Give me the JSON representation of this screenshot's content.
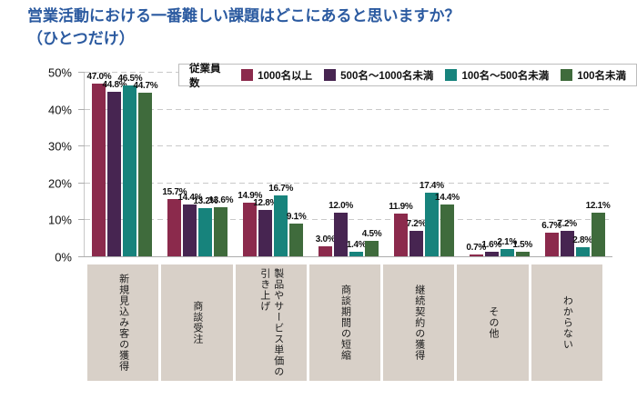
{
  "page": {
    "title_line1": "営業活動における一番難しい課題はどこにあると思いますか？",
    "title_line2": "（ひとつだけ）",
    "title_color": "#2B5AA0"
  },
  "legend": {
    "label": "従業員数"
  },
  "chart_data": {
    "type": "bar",
    "title": "営業活動における一番難しい課題はどこにあると思いますか？（ひとつだけ）",
    "categories": [
      "新規見込み客の獲得",
      "商談受注",
      "製品やサービス単価の\n引き上げ",
      "商談期間の短縮",
      "継続契約の獲得",
      "その他",
      "わからない"
    ],
    "series": [
      {
        "name": "1000名以上",
        "color": "#8B2A4C",
        "values": [
          47.0,
          15.7,
          14.9,
          3.0,
          11.9,
          0.7,
          6.7
        ]
      },
      {
        "name": "500名～1000名未満",
        "color": "#472551",
        "values": [
          44.8,
          14.4,
          12.8,
          12.0,
          7.2,
          1.6,
          7.2
        ]
      },
      {
        "name": "100名～500名未満",
        "color": "#17837C",
        "values": [
          46.5,
          13.2,
          16.7,
          1.4,
          17.4,
          2.1,
          2.8
        ]
      },
      {
        "name": "100名未満",
        "color": "#3F6B3C",
        "values": [
          44.7,
          13.6,
          9.1,
          4.5,
          14.4,
          1.5,
          12.1
        ]
      }
    ],
    "xlabel": "",
    "ylabel": "",
    "ylim": [
      0,
      50
    ],
    "y_ticks": [
      0,
      10,
      20,
      30,
      40,
      50
    ],
    "value_suffix": "%",
    "grid": "dashed horizontal gridlines",
    "legend_position": "top",
    "data_labels": "above each bar"
  },
  "colors": {
    "category_box_bg": "#D8D0C8",
    "gridline": "#C9C9C9",
    "axis": "#ADADAD"
  }
}
